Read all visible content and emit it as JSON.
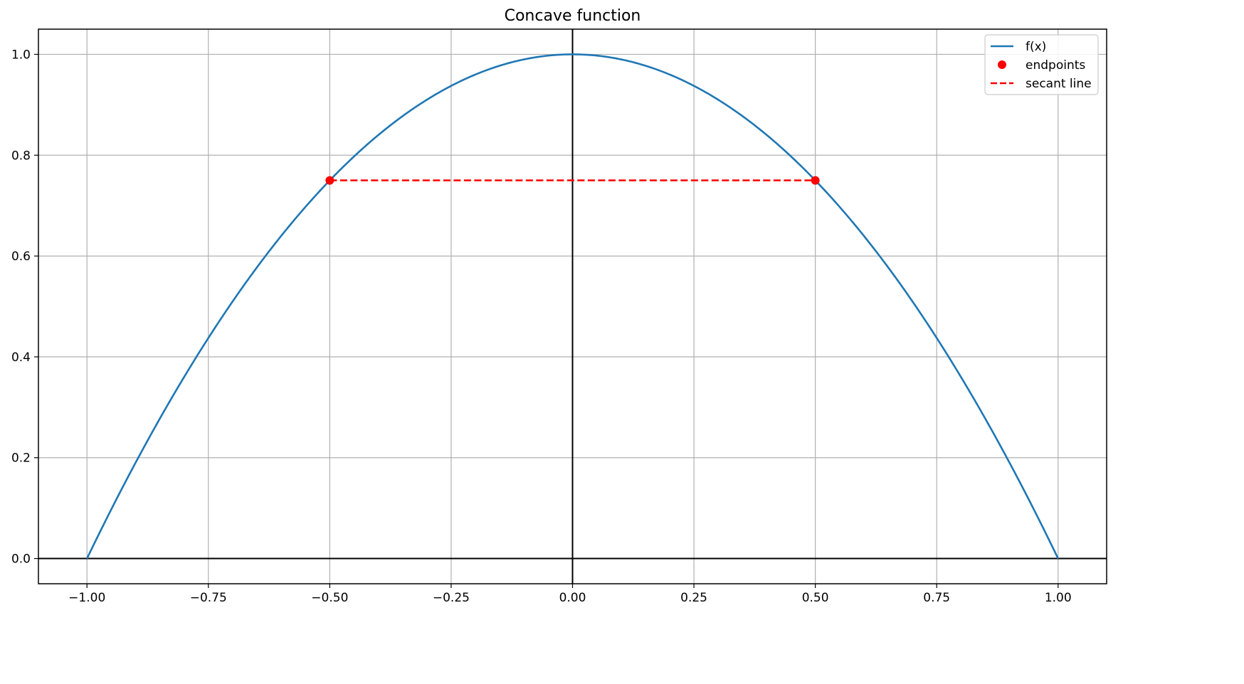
{
  "chart_data": {
    "type": "line",
    "title": "Concave function",
    "xlabel": "",
    "ylabel": "",
    "xlim": [
      -1.1,
      1.1
    ],
    "ylim": [
      -0.05,
      1.05
    ],
    "x_ticks": [
      -1.0,
      -0.75,
      -0.5,
      -0.25,
      0.0,
      0.25,
      0.5,
      0.75,
      1.0
    ],
    "x_tick_labels": [
      "−1.00",
      "−0.75",
      "−0.50",
      "−0.25",
      "0.00",
      "0.25",
      "0.50",
      "0.75",
      "1.00"
    ],
    "y_ticks": [
      0.0,
      0.2,
      0.4,
      0.6,
      0.8,
      1.0
    ],
    "y_tick_labels": [
      "0.0",
      "0.2",
      "0.4",
      "0.6",
      "0.8",
      "1.0"
    ],
    "grid": true,
    "axis_lines": {
      "x": 0,
      "y": 0
    },
    "legend_position": "top-right",
    "series": [
      {
        "name": "f(x)",
        "kind": "line",
        "color": "#1f77b4",
        "x": [
          -1.0,
          -0.9,
          -0.8,
          -0.7,
          -0.6,
          -0.5,
          -0.4,
          -0.3,
          -0.2,
          -0.1,
          0.0,
          0.1,
          0.2,
          0.3,
          0.4,
          0.5,
          0.6,
          0.7,
          0.8,
          0.9,
          1.0
        ],
        "y": [
          0.0,
          0.19,
          0.36,
          0.51,
          0.64,
          0.75,
          0.84,
          0.91,
          0.96,
          0.99,
          1.0,
          0.99,
          0.96,
          0.91,
          0.84,
          0.75,
          0.64,
          0.51,
          0.36,
          0.19,
          0.0
        ]
      },
      {
        "name": "endpoints",
        "kind": "points",
        "color": "#ff0000",
        "x": [
          -0.5,
          0.5
        ],
        "y": [
          0.75,
          0.75
        ]
      },
      {
        "name": "secant line",
        "kind": "dashed",
        "color": "#ff0000",
        "x": [
          -0.5,
          0.5
        ],
        "y": [
          0.75,
          0.75
        ]
      }
    ]
  }
}
